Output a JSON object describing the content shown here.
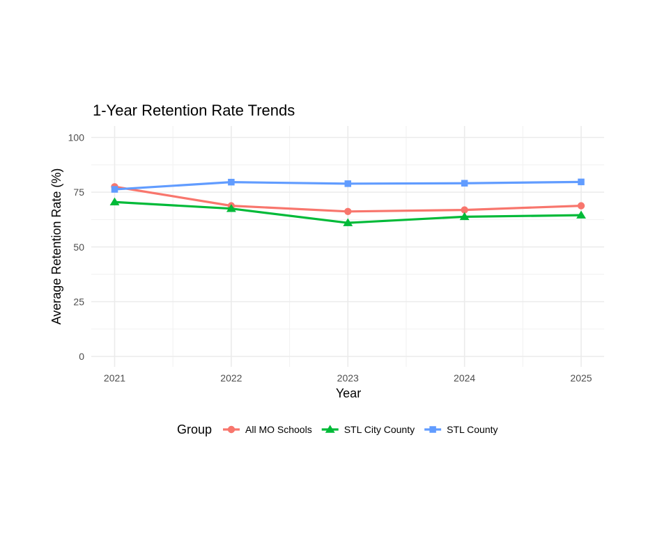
{
  "chart_data": {
    "type": "line",
    "title": "1-Year Retention Rate Trends",
    "xlabel": "Year",
    "ylabel": "Average Retention Rate (%)",
    "x": [
      "2021",
      "2022",
      "2023",
      "2024",
      "2025"
    ],
    "ylim": [
      0,
      100
    ],
    "yticks": [
      "0",
      "25",
      "50",
      "75",
      "100"
    ],
    "grid": true,
    "legend": {
      "title": "Group",
      "position": "bottom"
    },
    "series": [
      {
        "name": "All MO Schools",
        "color": "#F8766D",
        "marker": "circle",
        "values": [
          77.5,
          68.8,
          66.2,
          66.9,
          68.8
        ]
      },
      {
        "name": "STL City County",
        "color": "#00BA38",
        "marker": "triangle",
        "values": [
          70.5,
          67.5,
          61.0,
          63.8,
          64.5
        ]
      },
      {
        "name": "STL County",
        "color": "#619CFF",
        "marker": "square",
        "values": [
          76.3,
          79.6,
          78.9,
          79.1,
          79.7
        ]
      }
    ]
  }
}
